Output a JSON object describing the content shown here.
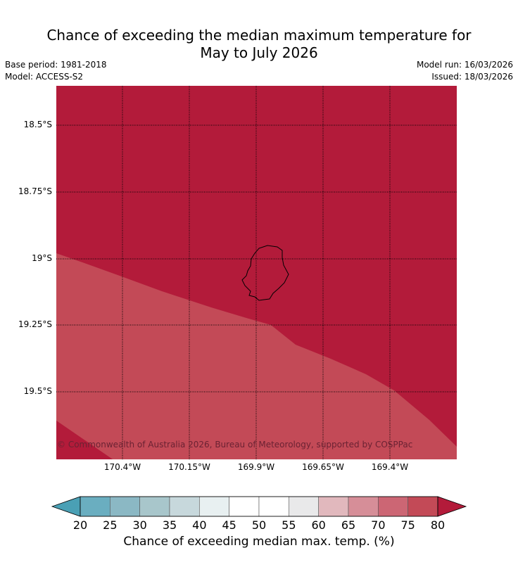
{
  "header": {
    "title_line1": "Chance of exceeding the median maximum temperature for",
    "title_line2": "May to July 2026",
    "base_period": "Base period: 1981-2018",
    "model": "Model: ACCESS-S2",
    "model_run": "Model run: 16/03/2026",
    "issued": "Issued: 18/03/2026"
  },
  "map": {
    "longitude_labels": [
      "170.4°W",
      "170.15°W",
      "169.9°W",
      "169.65°W",
      "169.4°W"
    ],
    "latitude_labels": [
      "18.5°S",
      "18.75°S",
      "19°S",
      "19.25°S",
      "19.5°S"
    ],
    "copyright": "© Commonwealth of Australia 2026, Bureau of Meteorology, supported by COSPPac",
    "zone_colors": {
      "above_80": "#b31b3a",
      "75_80": "#c34a57"
    }
  },
  "colorbar": {
    "ticks": [
      "20",
      "25",
      "30",
      "35",
      "40",
      "45",
      "50",
      "55",
      "60",
      "65",
      "70",
      "75",
      "80"
    ],
    "colors": [
      "#4aa0b5",
      "#6aaec0",
      "#8bb8c4",
      "#a8c6cb",
      "#c7d8dc",
      "#e8f0f1",
      "#ffffff",
      "#ffffff",
      "#e9e9ea",
      "#e1b8bd",
      "#d68e98",
      "#cc6674",
      "#c34a57",
      "#b31b3a"
    ],
    "label": "Chance of exceeding median max. temp. (%)"
  }
}
